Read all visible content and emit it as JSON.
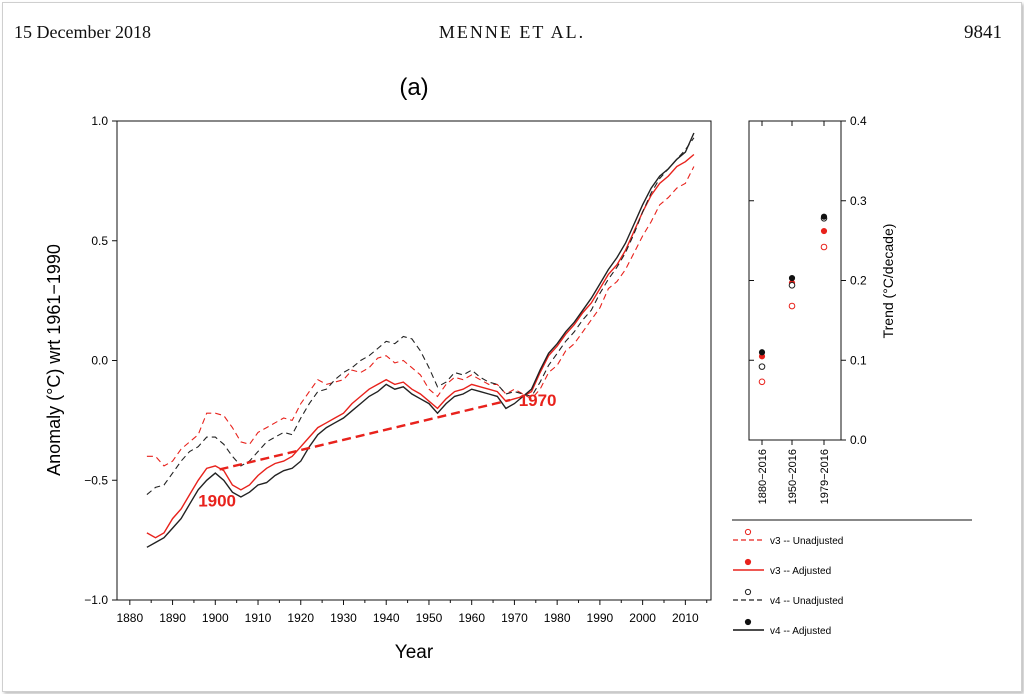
{
  "header": {
    "date": "15 December 2018",
    "running_head": "MENNE ET AL.",
    "page_number": "9841"
  },
  "chart_data": [
    {
      "type": "line",
      "title": "(a)",
      "xlabel": "Year",
      "ylabel": "Anomaly (°C) wrt 1961−1990",
      "xlim": [
        1877,
        2016
      ],
      "ylim": [
        -1.0,
        1.0
      ],
      "xticks": [
        1880,
        1890,
        1900,
        1910,
        1920,
        1930,
        1940,
        1950,
        1960,
        1970,
        1980,
        1990,
        2000,
        2010
      ],
      "yticks": [
        -1.0,
        -0.5,
        0.0,
        0.5,
        1.0
      ],
      "ytick_labels": [
        "−1.0",
        "−0.5",
        "0.0",
        "0.5",
        "1.0"
      ],
      "grid": false,
      "colors": {
        "v3": "#e8221c",
        "v4": "#222222"
      },
      "series": [
        {
          "name": "v3 -- Unadjusted",
          "version": "v3",
          "style": "dashed",
          "x": [
            1884,
            1886,
            1888,
            1890,
            1892,
            1894,
            1896,
            1898,
            1900,
            1902,
            1904,
            1906,
            1908,
            1910,
            1912,
            1914,
            1916,
            1918,
            1920,
            1922,
            1924,
            1926,
            1928,
            1930,
            1932,
            1934,
            1936,
            1938,
            1940,
            1942,
            1944,
            1946,
            1948,
            1950,
            1952,
            1954,
            1956,
            1958,
            1960,
            1962,
            1964,
            1966,
            1968,
            1970,
            1972,
            1974,
            1976,
            1978,
            1980,
            1982,
            1984,
            1986,
            1988,
            1990,
            1992,
            1994,
            1996,
            1998,
            2000,
            2002,
            2004,
            2006,
            2008,
            2010,
            2012
          ],
          "y": [
            -0.4,
            -0.4,
            -0.44,
            -0.42,
            -0.37,
            -0.34,
            -0.31,
            -0.22,
            -0.22,
            -0.23,
            -0.28,
            -0.34,
            -0.35,
            -0.3,
            -0.28,
            -0.26,
            -0.24,
            -0.25,
            -0.18,
            -0.13,
            -0.08,
            -0.1,
            -0.09,
            -0.08,
            -0.04,
            -0.05,
            -0.03,
            0.01,
            0.02,
            -0.01,
            0.0,
            -0.03,
            -0.06,
            -0.12,
            -0.15,
            -0.1,
            -0.07,
            -0.08,
            -0.06,
            -0.08,
            -0.1,
            -0.1,
            -0.14,
            -0.12,
            -0.14,
            -0.16,
            -0.12,
            -0.05,
            -0.02,
            0.04,
            0.07,
            0.12,
            0.17,
            0.22,
            0.3,
            0.33,
            0.38,
            0.45,
            0.52,
            0.58,
            0.65,
            0.68,
            0.72,
            0.74,
            0.81
          ]
        },
        {
          "name": "v3 -- Adjusted",
          "version": "v3",
          "style": "solid",
          "x": [
            1884,
            1886,
            1888,
            1890,
            1892,
            1894,
            1896,
            1898,
            1900,
            1902,
            1904,
            1906,
            1908,
            1910,
            1912,
            1914,
            1916,
            1918,
            1920,
            1922,
            1924,
            1926,
            1928,
            1930,
            1932,
            1934,
            1936,
            1938,
            1940,
            1942,
            1944,
            1946,
            1948,
            1950,
            1952,
            1954,
            1956,
            1958,
            1960,
            1962,
            1964,
            1966,
            1968,
            1970,
            1972,
            1974,
            1976,
            1978,
            1980,
            1982,
            1984,
            1986,
            1988,
            1990,
            1992,
            1994,
            1996,
            1998,
            2000,
            2002,
            2004,
            2006,
            2008,
            2010,
            2012
          ],
          "y": [
            -0.72,
            -0.74,
            -0.72,
            -0.66,
            -0.62,
            -0.56,
            -0.5,
            -0.45,
            -0.44,
            -0.46,
            -0.52,
            -0.54,
            -0.52,
            -0.48,
            -0.45,
            -0.43,
            -0.42,
            -0.4,
            -0.36,
            -0.32,
            -0.28,
            -0.26,
            -0.24,
            -0.22,
            -0.18,
            -0.15,
            -0.12,
            -0.1,
            -0.08,
            -0.1,
            -0.09,
            -0.12,
            -0.14,
            -0.17,
            -0.2,
            -0.16,
            -0.13,
            -0.12,
            -0.1,
            -0.11,
            -0.12,
            -0.13,
            -0.17,
            -0.16,
            -0.15,
            -0.13,
            -0.05,
            0.02,
            0.06,
            0.11,
            0.15,
            0.2,
            0.24,
            0.3,
            0.36,
            0.4,
            0.46,
            0.54,
            0.62,
            0.69,
            0.74,
            0.77,
            0.81,
            0.83,
            0.86
          ]
        },
        {
          "name": "v4 -- Unadjusted",
          "version": "v4",
          "style": "dashed",
          "x": [
            1884,
            1886,
            1888,
            1890,
            1892,
            1894,
            1896,
            1898,
            1900,
            1902,
            1904,
            1906,
            1908,
            1910,
            1912,
            1914,
            1916,
            1918,
            1920,
            1922,
            1924,
            1926,
            1928,
            1930,
            1932,
            1934,
            1936,
            1938,
            1940,
            1942,
            1944,
            1946,
            1948,
            1950,
            1952,
            1954,
            1956,
            1958,
            1960,
            1962,
            1964,
            1966,
            1968,
            1970,
            1972,
            1974,
            1976,
            1978,
            1980,
            1982,
            1984,
            1986,
            1988,
            1990,
            1992,
            1994,
            1996,
            1998,
            2000,
            2002,
            2004,
            2006,
            2008,
            2010,
            2012
          ],
          "y": [
            -0.56,
            -0.53,
            -0.52,
            -0.47,
            -0.42,
            -0.38,
            -0.36,
            -0.32,
            -0.32,
            -0.35,
            -0.4,
            -0.44,
            -0.42,
            -0.38,
            -0.34,
            -0.32,
            -0.3,
            -0.31,
            -0.24,
            -0.18,
            -0.13,
            -0.12,
            -0.08,
            -0.05,
            -0.03,
            0.0,
            0.02,
            0.05,
            0.08,
            0.07,
            0.1,
            0.09,
            0.04,
            -0.03,
            -0.11,
            -0.09,
            -0.05,
            -0.06,
            -0.04,
            -0.07,
            -0.09,
            -0.1,
            -0.14,
            -0.13,
            -0.14,
            -0.15,
            -0.09,
            -0.02,
            0.03,
            0.08,
            0.12,
            0.17,
            0.21,
            0.28,
            0.34,
            0.39,
            0.45,
            0.53,
            0.62,
            0.7,
            0.76,
            0.8,
            0.84,
            0.88,
            0.93
          ]
        },
        {
          "name": "v4 -- Adjusted",
          "version": "v4",
          "style": "solid",
          "x": [
            1884,
            1886,
            1888,
            1890,
            1892,
            1894,
            1896,
            1898,
            1900,
            1902,
            1904,
            1906,
            1908,
            1910,
            1912,
            1914,
            1916,
            1918,
            1920,
            1922,
            1924,
            1926,
            1928,
            1930,
            1932,
            1934,
            1936,
            1938,
            1940,
            1942,
            1944,
            1946,
            1948,
            1950,
            1952,
            1954,
            1956,
            1958,
            1960,
            1962,
            1964,
            1966,
            1968,
            1970,
            1972,
            1974,
            1976,
            1978,
            1980,
            1982,
            1984,
            1986,
            1988,
            1990,
            1992,
            1994,
            1996,
            1998,
            2000,
            2002,
            2004,
            2006,
            2008,
            2010,
            2012
          ],
          "y": [
            -0.78,
            -0.76,
            -0.74,
            -0.7,
            -0.66,
            -0.6,
            -0.54,
            -0.5,
            -0.47,
            -0.5,
            -0.55,
            -0.57,
            -0.55,
            -0.52,
            -0.51,
            -0.48,
            -0.46,
            -0.45,
            -0.42,
            -0.36,
            -0.31,
            -0.28,
            -0.26,
            -0.24,
            -0.21,
            -0.18,
            -0.15,
            -0.13,
            -0.1,
            -0.12,
            -0.11,
            -0.14,
            -0.16,
            -0.18,
            -0.22,
            -0.18,
            -0.15,
            -0.14,
            -0.12,
            -0.13,
            -0.14,
            -0.15,
            -0.2,
            -0.18,
            -0.15,
            -0.12,
            -0.04,
            0.03,
            0.07,
            0.12,
            0.16,
            0.21,
            0.26,
            0.32,
            0.38,
            0.43,
            0.49,
            0.57,
            0.65,
            0.72,
            0.77,
            0.8,
            0.84,
            0.87,
            0.95
          ]
        }
      ],
      "annotations": [
        {
          "type": "dashed-segment",
          "color": "#e8221c",
          "from": [
            1901,
            -0.455
          ],
          "to": [
            1969,
            -0.165
          ]
        },
        {
          "type": "label",
          "text": "1900",
          "at": [
            1896,
            -0.61
          ],
          "color": "#e8221c"
        },
        {
          "type": "label",
          "text": "1970",
          "at": [
            1971,
            -0.19
          ],
          "color": "#e8221c"
        }
      ]
    },
    {
      "type": "scatter",
      "ylabel": "Trend (°C/decade)",
      "yaxis_side": "right",
      "ylim": [
        0.0,
        0.4
      ],
      "yticks": [
        0.0,
        0.1,
        0.2,
        0.3,
        0.4
      ],
      "ytick_labels": [
        "0.0",
        "0.1",
        "0.2",
        "0.3",
        "0.4"
      ],
      "categories": [
        "1880−2016",
        "1950−2016",
        "1979−2016"
      ],
      "series": [
        {
          "name": "v3 -- Unadjusted",
          "marker": "open-circle",
          "color": "#e8221c",
          "values": [
            0.073,
            0.168,
            0.242
          ]
        },
        {
          "name": "v3 -- Adjusted",
          "marker": "filled-circle",
          "color": "#e8221c",
          "values": [
            0.105,
            0.197,
            0.262
          ]
        },
        {
          "name": "v4 -- Unadjusted",
          "marker": "open-circle",
          "color": "#222222",
          "values": [
            0.092,
            0.194,
            0.278
          ]
        },
        {
          "name": "v4 -- Adjusted",
          "marker": "filled-circle",
          "color": "#111111",
          "values": [
            0.11,
            0.203,
            0.28
          ]
        }
      ]
    }
  ],
  "legend": {
    "placement": "bottom-right",
    "items": [
      {
        "label": "v3 -- Unadjusted",
        "color": "#e8221c",
        "line": "dashed",
        "marker": "open-circle"
      },
      {
        "label": "v3 -- Adjusted",
        "color": "#e8221c",
        "line": "solid",
        "marker": "filled-circle"
      },
      {
        "label": "v4 -- Unadjusted",
        "color": "#222222",
        "line": "dashed",
        "marker": "open-circle"
      },
      {
        "label": "v4 -- Adjusted",
        "color": "#111111",
        "line": "solid",
        "marker": "filled-circle"
      }
    ]
  }
}
